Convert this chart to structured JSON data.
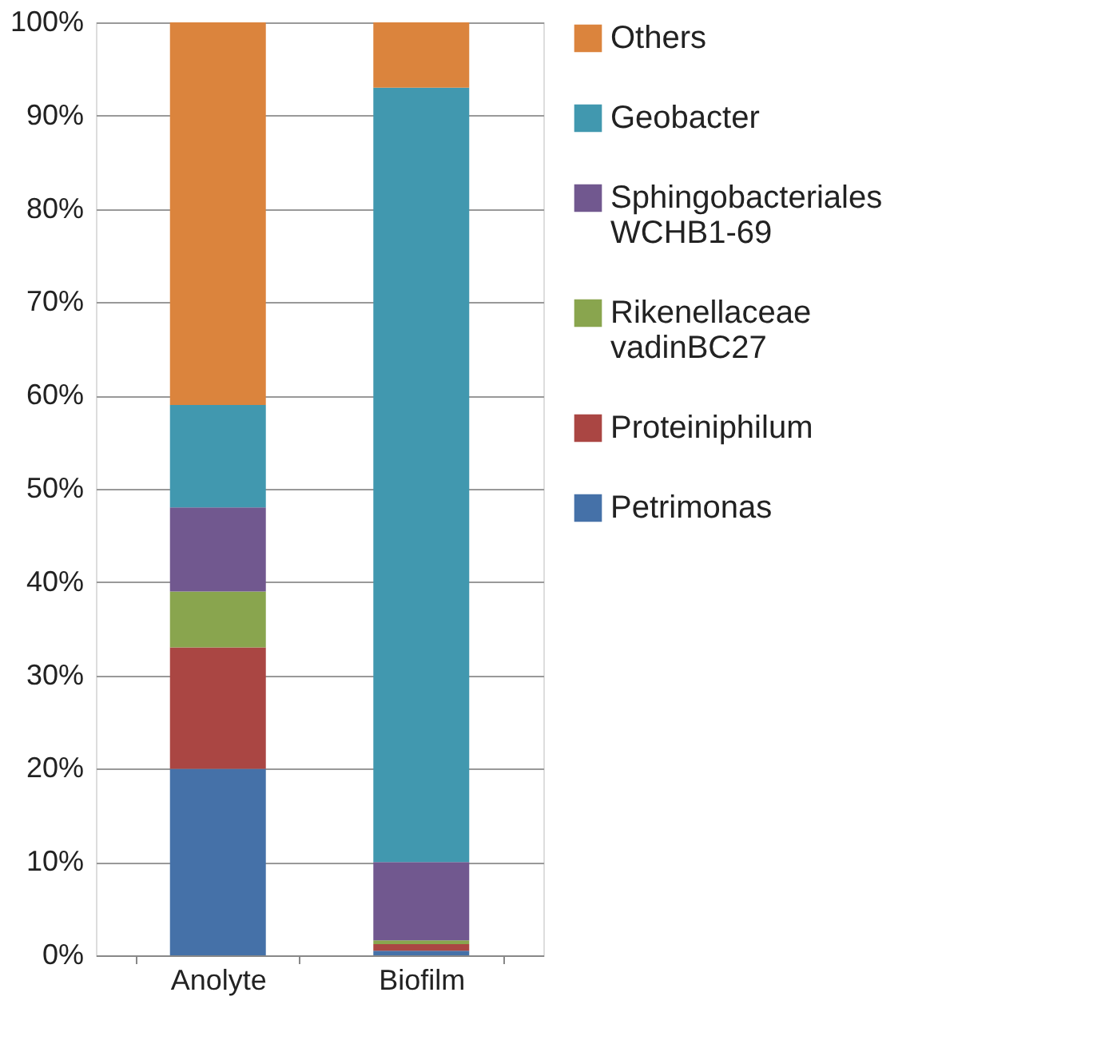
{
  "chart_data": {
    "type": "bar",
    "stacked": true,
    "categories": [
      "Anolyte",
      "Biofilm"
    ],
    "series": [
      {
        "name": "Petrimonas",
        "color": "#4571a8",
        "values": [
          20,
          0.5
        ]
      },
      {
        "name": "Proteiniphilum",
        "color": "#aa4643",
        "values": [
          13,
          0.7
        ]
      },
      {
        "name": "Rikenellaceae vadinBC27",
        "color": "#89a54e",
        "values": [
          6,
          0.4
        ]
      },
      {
        "name": "Sphingobacteriales WCHB1-69",
        "color": "#71588f",
        "values": [
          9,
          8.4
        ]
      },
      {
        "name": "Geobacter",
        "color": "#4198af",
        "values": [
          11,
          83
        ]
      },
      {
        "name": "Others",
        "color": "#db843d",
        "values": [
          41,
          7
        ]
      }
    ],
    "ylim": [
      0,
      100
    ],
    "yticks": [
      {
        "value": 0,
        "label": "0%"
      },
      {
        "value": 10,
        "label": "10%"
      },
      {
        "value": 20,
        "label": "20%"
      },
      {
        "value": 30,
        "label": "30%"
      },
      {
        "value": 40,
        "label": "40%"
      },
      {
        "value": 50,
        "label": "50%"
      },
      {
        "value": 60,
        "label": "60%"
      },
      {
        "value": 70,
        "label": "70%"
      },
      {
        "value": 80,
        "label": "80%"
      },
      {
        "value": 90,
        "label": "90%"
      },
      {
        "value": 100,
        "label": "100%"
      }
    ],
    "grid": "y",
    "legend": "right"
  }
}
